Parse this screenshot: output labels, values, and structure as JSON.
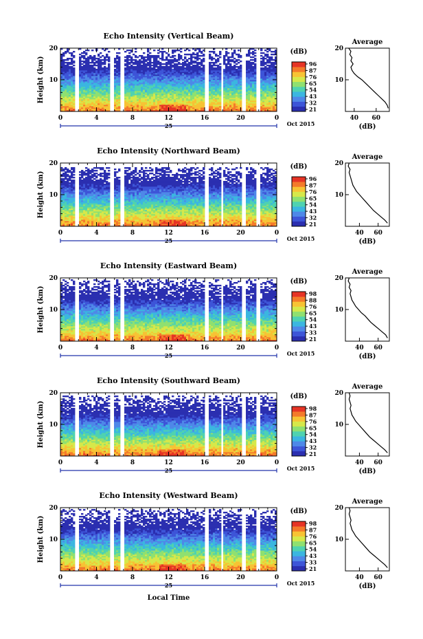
{
  "figure": {
    "month_label": "Oct 2015",
    "day_label": "25",
    "time_xlabel": "Local Time",
    "height_ylabel": "Height (km)",
    "colorbar_unit": "(dB)",
    "avg_title": "Average",
    "avg_xlabel": "(dB)"
  },
  "chart_data": [
    {
      "type": "heatmap",
      "title": "Echo Intensity (Vertical Beam)",
      "ylabel": "Height (km)",
      "xlim": [
        0,
        24
      ],
      "ylim": [
        0,
        20
      ],
      "x_ticks": [
        "0",
        "4",
        "8",
        "12",
        "16",
        "20",
        "0"
      ],
      "y_ticks": [
        "10",
        "20"
      ],
      "colorbar_ticks": [
        "96",
        "87",
        "76",
        "65",
        "54",
        "43",
        "32",
        "21"
      ],
      "colorscale": [
        "#2b2fb0",
        "#3d55d8",
        "#4e88e8",
        "#3bb6e0",
        "#4fd2b0",
        "#8fe070",
        "#d6e84a",
        "#f7c334",
        "#f47a2a",
        "#e63425"
      ],
      "data_gaps_hours": [
        [
          1.5,
          2.0
        ],
        [
          5.6,
          5.9
        ],
        [
          6.6,
          7.0
        ],
        [
          16.0,
          16.4
        ],
        [
          17.8,
          18.1
        ],
        [
          20.2,
          20.6
        ],
        [
          21.8,
          22.2
        ]
      ],
      "echo_top_km": 19.8,
      "average_profile": {
        "title": "Average",
        "xlabel": "(dB)",
        "xlim": [
          32,
          72
        ],
        "ylim": [
          0,
          20
        ],
        "x_ticks": [
          "40",
          "60"
        ],
        "y_ticks": [
          "10",
          "20"
        ],
        "x": [
          71,
          70,
          68,
          65,
          62,
          59,
          56,
          53,
          50,
          47,
          43,
          40,
          38,
          37,
          39,
          37,
          38,
          36,
          37,
          35
        ],
        "y": [
          1,
          2,
          3,
          4,
          5,
          6,
          7,
          8,
          9,
          10,
          11,
          12,
          13,
          14,
          15,
          16,
          17,
          18,
          19,
          20
        ]
      }
    },
    {
      "type": "heatmap",
      "title": "Echo Intensity (Northward Beam)",
      "ylabel": "Height (km)",
      "xlim": [
        0,
        24
      ],
      "ylim": [
        0,
        20
      ],
      "x_ticks": [
        "0",
        "4",
        "8",
        "12",
        "16",
        "20",
        "0"
      ],
      "y_ticks": [
        "10",
        "20"
      ],
      "colorbar_ticks": [
        "96",
        "87",
        "76",
        "65",
        "54",
        "43",
        "32",
        "21"
      ],
      "colorscale": [
        "#2b2fb0",
        "#3d55d8",
        "#4e88e8",
        "#3bb6e0",
        "#4fd2b0",
        "#8fe070",
        "#d6e84a",
        "#f7c334",
        "#f47a2a",
        "#e63425"
      ],
      "data_gaps_hours": [
        [
          1.5,
          2.0
        ],
        [
          5.6,
          5.9
        ],
        [
          6.6,
          7.0
        ],
        [
          16.0,
          16.4
        ],
        [
          17.8,
          18.1
        ],
        [
          20.2,
          20.6
        ],
        [
          21.8,
          22.2
        ]
      ],
      "echo_top_km": 18.5,
      "average_profile": {
        "title": "Average",
        "xlabel": "(dB)",
        "xlim": [
          25,
          72
        ],
        "ylim": [
          0,
          20
        ],
        "x": [
          70,
          67,
          63,
          59,
          55,
          52,
          49,
          46,
          43,
          40,
          37,
          35,
          33,
          32,
          31,
          30,
          29,
          30,
          28,
          29
        ],
        "y": [
          1,
          2,
          3,
          4,
          5,
          6,
          7,
          8,
          9,
          10,
          11,
          12,
          13,
          14,
          15,
          16,
          17,
          18,
          19,
          20
        ],
        "x_ticks": [
          "40",
          "60"
        ],
        "y_ticks": [
          "10",
          "20"
        ]
      }
    },
    {
      "type": "heatmap",
      "title": "Echo Intensity (Eastward Beam)",
      "ylabel": "Height (km)",
      "xlim": [
        0,
        24
      ],
      "ylim": [
        0,
        20
      ],
      "x_ticks": [
        "0",
        "4",
        "8",
        "12",
        "16",
        "20",
        "0"
      ],
      "y_ticks": [
        "10",
        "20"
      ],
      "colorbar_ticks": [
        "98",
        "88",
        "76",
        "65",
        "54",
        "43",
        "33",
        "21"
      ],
      "colorscale": [
        "#2b2fb0",
        "#3d55d8",
        "#4e88e8",
        "#3bb6e0",
        "#4fd2b0",
        "#8fe070",
        "#d6e84a",
        "#f7c334",
        "#f47a2a",
        "#e63425"
      ],
      "data_gaps_hours": [
        [
          1.5,
          2.0
        ],
        [
          5.6,
          5.9
        ],
        [
          6.6,
          7.0
        ],
        [
          16.0,
          16.4
        ],
        [
          17.8,
          18.1
        ],
        [
          20.2,
          20.6
        ],
        [
          21.8,
          22.2
        ]
      ],
      "echo_top_km": 19.5,
      "average_profile": {
        "title": "Average",
        "xlabel": "(dB)",
        "xlim": [
          25,
          72
        ],
        "ylim": [
          0,
          20
        ],
        "x": [
          70,
          68,
          64,
          60,
          56,
          52,
          49,
          46,
          42,
          39,
          36,
          34,
          32,
          31,
          30,
          31,
          29,
          30,
          28,
          29
        ],
        "y": [
          1,
          2,
          3,
          4,
          5,
          6,
          7,
          8,
          9,
          10,
          11,
          12,
          13,
          14,
          15,
          16,
          17,
          18,
          19,
          20
        ],
        "x_ticks": [
          "40",
          "60"
        ],
        "y_ticks": [
          "10",
          "20"
        ]
      }
    },
    {
      "type": "heatmap",
      "title": "Echo Intensity (Southward Beam)",
      "ylabel": "Height (km)",
      "xlim": [
        0,
        24
      ],
      "ylim": [
        0,
        20
      ],
      "x_ticks": [
        "0",
        "4",
        "8",
        "12",
        "16",
        "20",
        "0"
      ],
      "y_ticks": [
        "10",
        "20"
      ],
      "colorbar_ticks": [
        "98",
        "87",
        "76",
        "65",
        "54",
        "43",
        "32",
        "21"
      ],
      "colorscale": [
        "#2b2fb0",
        "#3d55d8",
        "#4e88e8",
        "#3bb6e0",
        "#4fd2b0",
        "#8fe070",
        "#d6e84a",
        "#f7c334",
        "#f47a2a",
        "#e63425"
      ],
      "data_gaps_hours": [
        [
          1.5,
          2.0
        ],
        [
          5.6,
          5.9
        ],
        [
          6.6,
          7.0
        ],
        [
          16.0,
          16.4
        ],
        [
          17.8,
          18.1
        ],
        [
          20.2,
          20.6
        ],
        [
          21.8,
          22.2
        ]
      ],
      "echo_top_km": 19.0,
      "average_profile": {
        "title": "Average",
        "xlabel": "(dB)",
        "xlim": [
          25,
          72
        ],
        "ylim": [
          0,
          20
        ],
        "x": [
          70,
          67,
          63,
          59,
          55,
          51,
          48,
          45,
          42,
          39,
          36,
          34,
          32,
          31,
          30,
          31,
          30,
          29,
          30,
          29
        ],
        "y": [
          1,
          2,
          3,
          4,
          5,
          6,
          7,
          8,
          9,
          10,
          11,
          12,
          13,
          14,
          15,
          16,
          17,
          18,
          19,
          20
        ],
        "x_ticks": [
          "40",
          "60"
        ],
        "y_ticks": [
          "10",
          "20"
        ]
      }
    },
    {
      "type": "heatmap",
      "title": "Echo Intensity (Westward Beam)",
      "ylabel": "Height (km)",
      "xlabel": "Local Time",
      "xlim": [
        0,
        24
      ],
      "ylim": [
        0,
        20
      ],
      "x_ticks": [
        "0",
        "4",
        "8",
        "12",
        "16",
        "20",
        "0"
      ],
      "y_ticks": [
        "10",
        "20"
      ],
      "colorbar_ticks": [
        "98",
        "87",
        "76",
        "65",
        "54",
        "43",
        "33",
        "21"
      ],
      "colorscale": [
        "#2b2fb0",
        "#3d55d8",
        "#4e88e8",
        "#3bb6e0",
        "#4fd2b0",
        "#8fe070",
        "#d6e84a",
        "#f7c334",
        "#f47a2a",
        "#e63425"
      ],
      "data_gaps_hours": [
        [
          1.5,
          2.0
        ],
        [
          5.6,
          5.9
        ],
        [
          6.6,
          7.0
        ],
        [
          16.0,
          16.4
        ],
        [
          17.8,
          18.1
        ],
        [
          20.2,
          20.6
        ],
        [
          21.8,
          22.2
        ]
      ],
      "echo_top_km": 19.5,
      "average_profile": {
        "title": "Average",
        "xlabel": "(dB)",
        "xlim": [
          25,
          72
        ],
        "ylim": [
          0,
          20
        ],
        "x": [
          70,
          67,
          63,
          59,
          55,
          51,
          48,
          45,
          42,
          39,
          36,
          34,
          32,
          31,
          30,
          31,
          30,
          29,
          30,
          29
        ],
        "y": [
          1,
          2,
          3,
          4,
          5,
          6,
          7,
          8,
          9,
          10,
          11,
          12,
          13,
          14,
          15,
          16,
          17,
          18,
          19,
          20
        ],
        "x_ticks": [
          "40",
          "60"
        ],
        "y_ticks": [
          "10",
          "20"
        ]
      }
    }
  ]
}
